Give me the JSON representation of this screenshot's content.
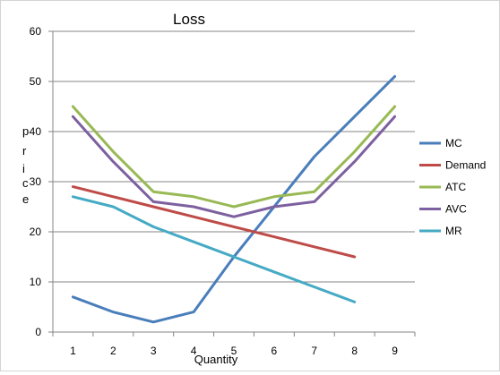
{
  "chart_data": {
    "type": "line",
    "title": "Loss",
    "xlabel": "Quantity",
    "ylabel_chars": [
      "p",
      "r",
      "i",
      "c",
      "e"
    ],
    "ylim": [
      0,
      60
    ],
    "y_ticks": [
      "0",
      "10",
      "20",
      "30",
      "40",
      "50",
      "60"
    ],
    "x_ticks": [
      "1",
      "2",
      "3",
      "4",
      "5",
      "6",
      "7",
      "8",
      "9"
    ],
    "x": [
      1,
      2,
      3,
      4,
      5,
      6,
      7,
      8,
      9
    ],
    "grid": "horizontal",
    "legend_position": "right",
    "series": [
      {
        "name": "MC",
        "color": "#4a7ebb",
        "values": [
          7,
          4,
          2,
          4,
          15,
          25,
          35,
          43,
          51
        ]
      },
      {
        "name": "Demand",
        "color": "#be4b48",
        "values": [
          29,
          27,
          25,
          23,
          21,
          19,
          17,
          15,
          null
        ]
      },
      {
        "name": "ATC",
        "color": "#98b954",
        "values": [
          45,
          36,
          28,
          27,
          25,
          27,
          28,
          36,
          45
        ]
      },
      {
        "name": "AVC",
        "color": "#7d60a0",
        "values": [
          43,
          34,
          26,
          25,
          23,
          25,
          26,
          34,
          43
        ]
      },
      {
        "name": "MR",
        "color": "#46aac5",
        "values": [
          27,
          25,
          21,
          18,
          15,
          12,
          9,
          6,
          null
        ]
      }
    ]
  }
}
